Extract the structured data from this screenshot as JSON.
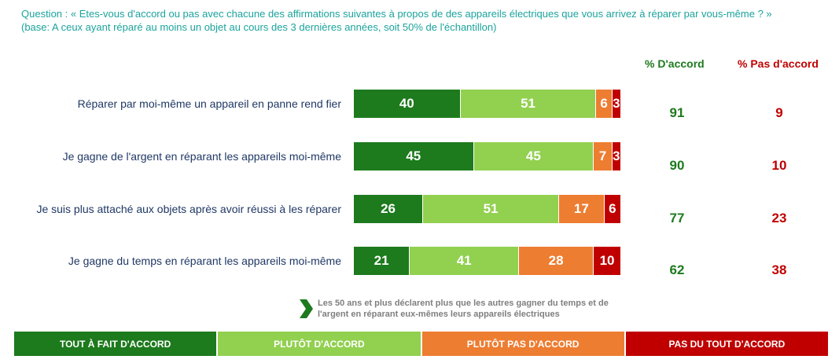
{
  "question": {
    "line1": "Question : « Etes-vous d'accord ou pas avec chacune des affirmations suivantes à propos de des appareils électriques que vous arrivez à réparer par vous-même ? »",
    "line2": "(base: A ceux ayant réparé au moins un objet au cours des 3 dernières années, soit 50% de l'échantillon)"
  },
  "columns": {
    "agree": "% D'accord",
    "disagree": "% Pas d'accord"
  },
  "note": "Les 50 ans et plus déclarent plus que les autres gagner du temps et de l'argent en réparant eux-mêmes leurs appareils électriques",
  "colors": {
    "tout_a_fait": "#1d7a1d",
    "plutot": "#92d050",
    "plutot_pas": "#ed7d31",
    "pas_du_tout": "#c00000"
  },
  "chart_data": {
    "type": "bar",
    "orientation": "horizontal-stacked",
    "categories": [
      "Réparer par moi-même un appareil en panne rend fier",
      "Je gagne de l'argent en réparant les appareils moi-même",
      "Je suis plus attaché aux objets après avoir réussi à les réparer",
      "Je gagne du temps en réparant les appareils moi-même"
    ],
    "series": [
      {
        "name": "TOUT À FAIT D'ACCORD",
        "color": "#1d7a1d",
        "values": [
          40,
          45,
          26,
          21
        ]
      },
      {
        "name": "PLUTÔT D'ACCORD",
        "color": "#92d050",
        "values": [
          51,
          45,
          51,
          41
        ]
      },
      {
        "name": "PLUTÔT PAS D'ACCORD",
        "color": "#ed7d31",
        "values": [
          6,
          7,
          17,
          28
        ]
      },
      {
        "name": "PAS DU TOUT D'ACCORD",
        "color": "#c00000",
        "values": [
          3,
          3,
          6,
          10
        ]
      }
    ],
    "totals_agree": [
      91,
      90,
      77,
      62
    ],
    "totals_disagree": [
      9,
      10,
      23,
      38
    ],
    "legend_position": "bottom",
    "grid": false
  }
}
